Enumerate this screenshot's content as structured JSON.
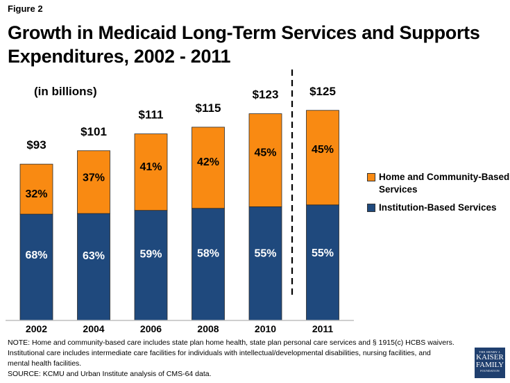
{
  "figure_label": "Figure 2",
  "title": "Growth in Medicaid Long-Term Services and Supports Expenditures, 2002 - 2011",
  "units_label": "(in billions)",
  "colors": {
    "hcbs": "#f98a12",
    "institution": "#1f497d",
    "axis": "#bfbfbf",
    "divider": "#000000"
  },
  "chart_data": {
    "type": "bar",
    "stacked": true,
    "title": "Growth in Medicaid Long-Term Services and Supports Expenditures, 2002 - 2011",
    "xlabel": "",
    "ylabel": "(in billions)",
    "categories": [
      "2002",
      "2004",
      "2006",
      "2008",
      "2010",
      "2011"
    ],
    "totals": [
      93,
      101,
      111,
      115,
      123,
      125
    ],
    "total_labels": [
      "$93",
      "$101",
      "$111",
      "$115",
      "$123",
      "$125"
    ],
    "series": [
      {
        "name": "Institution-Based Services",
        "percent": [
          68,
          63,
          59,
          58,
          55,
          55
        ],
        "labels": [
          "68%",
          "63%",
          "59%",
          "58%",
          "55%",
          "55%"
        ]
      },
      {
        "name": "Home and Community-Based Services",
        "percent": [
          32,
          37,
          41,
          42,
          45,
          45
        ],
        "labels": [
          "32%",
          "37%",
          "41%",
          "42%",
          "45%",
          "45%"
        ]
      }
    ],
    "ylim": [
      0,
      130
    ],
    "grid": false,
    "legend": "right",
    "divider_between": [
      "2010",
      "2011"
    ]
  },
  "legend": {
    "items": [
      {
        "label": "Home and Community-Based Services",
        "color": "#f98a12"
      },
      {
        "label": "Institution-Based Services",
        "color": "#1f497d"
      }
    ]
  },
  "notes": {
    "line1": "NOTE: Home and community-based care includes state plan home health, state plan personal care services and § 1915(c) HCBS waivers.",
    "line2": "Institutional care includes intermediate care facilities for individuals with intellectual/developmental disabilities, nursing facilities, and",
    "line3": "mental health facilities.",
    "line4": "SOURCE: KCMU and Urban Institute analysis of CMS-64 data."
  },
  "logo": {
    "line1": "THE HENRY J.",
    "line2": "KAISER",
    "line3": "FAMILY",
    "line4": "FOUNDATION"
  }
}
